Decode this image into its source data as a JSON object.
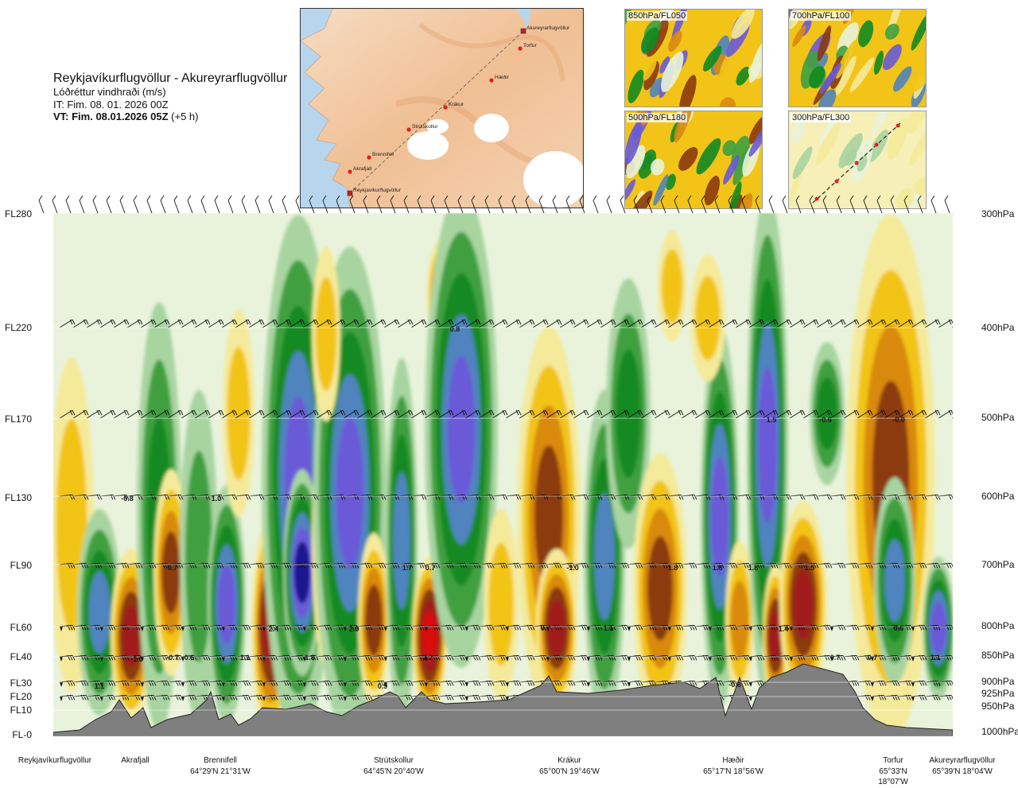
{
  "header": {
    "route": "Reykjavíkurflugvöllur - Akureyrarflugvöllur",
    "variable": "Lóðréttur vindhraði (m/s)",
    "init_time": "IT: Fim. 08. 01. 2026 00Z",
    "valid_prefix": "VT: Fim. 08.01.2026 05Z",
    "valid_suffix": "(+5 h)"
  },
  "map": {
    "points": [
      {
        "name": "Akureyrarflugvöllur"
      },
      {
        "name": "Torfur"
      },
      {
        "name": "Hæðir"
      },
      {
        "name": "Krákur"
      },
      {
        "name": "Strútskollur"
      },
      {
        "name": "Brennifell"
      },
      {
        "name": "Akrafjall"
      },
      {
        "name": "Reykjavíkurflugvöllur"
      }
    ]
  },
  "thumbnails": [
    {
      "label": "850hPa/FL050"
    },
    {
      "label": "700hPa/FL100"
    },
    {
      "label": "500hPa/FL180"
    },
    {
      "label": "300hPa/FL300"
    }
  ],
  "levels_left": [
    "FL280",
    "FL220",
    "FL170",
    "FL130",
    "FL90",
    "FL60",
    "FL40",
    "FL30",
    "FL20",
    "FL10",
    "FL-0"
  ],
  "levels_right": [
    "300hPa",
    "400hPa",
    "500hPa",
    "600hPa",
    "700hPa",
    "800hPa",
    "850hPa",
    "900hPa",
    "925hPa",
    "950hPa",
    "1000hPa"
  ],
  "stations": [
    {
      "name": "Reykjavíkurflugvöllur",
      "coord": ""
    },
    {
      "name": "Akrafjall",
      "coord": ""
    },
    {
      "name": "Brennifell",
      "coord": "64°29'N 21°31'W"
    },
    {
      "name": "Strútskollur",
      "coord": "64°45'N 20°40'W"
    },
    {
      "name": "Krákur",
      "coord": "65°00'N 19°46'W"
    },
    {
      "name": "Hæðir",
      "coord": "65°17'N 18°56'W"
    },
    {
      "name": "Torfur",
      "coord": "65°33'N 18°07'W"
    },
    {
      "name": "Akureyrarflugvöllur",
      "coord": "65°39'N 18°04'W"
    }
  ],
  "value_labels": [
    "1.1",
    "-1.9",
    "-0.7",
    "0.6",
    "1.1",
    "2.4",
    "-1.8",
    "2.9",
    "0.9",
    "2.2",
    "1.5",
    "1.1",
    "-0.8",
    "1.4",
    "0.7",
    "0.7",
    "1.1",
    "-0.6",
    "0.7",
    "-0.8",
    "1.0",
    "1.7",
    "0.7",
    "-1.0",
    "1.8",
    "1.8",
    "1.8",
    "1.5",
    "0.6",
    "-0.0",
    "0.8",
    "0.7"
  ],
  "colors": {
    "strong_down": "#1e1690",
    "down_4": "#6a5ad8",
    "down_3": "#4f84bf",
    "down_2": "#128a20",
    "down_1": "#3fa040",
    "weak_down": "#a8d4a0",
    "near_zero": "#e9f3dc",
    "weak_up": "#f5ea9a",
    "up_1": "#f2c418",
    "up_2": "#d98a10",
    "up_3": "#8b3a10",
    "up_4": "#a01c1c",
    "strong_up": "#d81010",
    "terrain": "#7f7f7f",
    "sea": "#b7d6ee",
    "land": "#f2c9a4"
  }
}
